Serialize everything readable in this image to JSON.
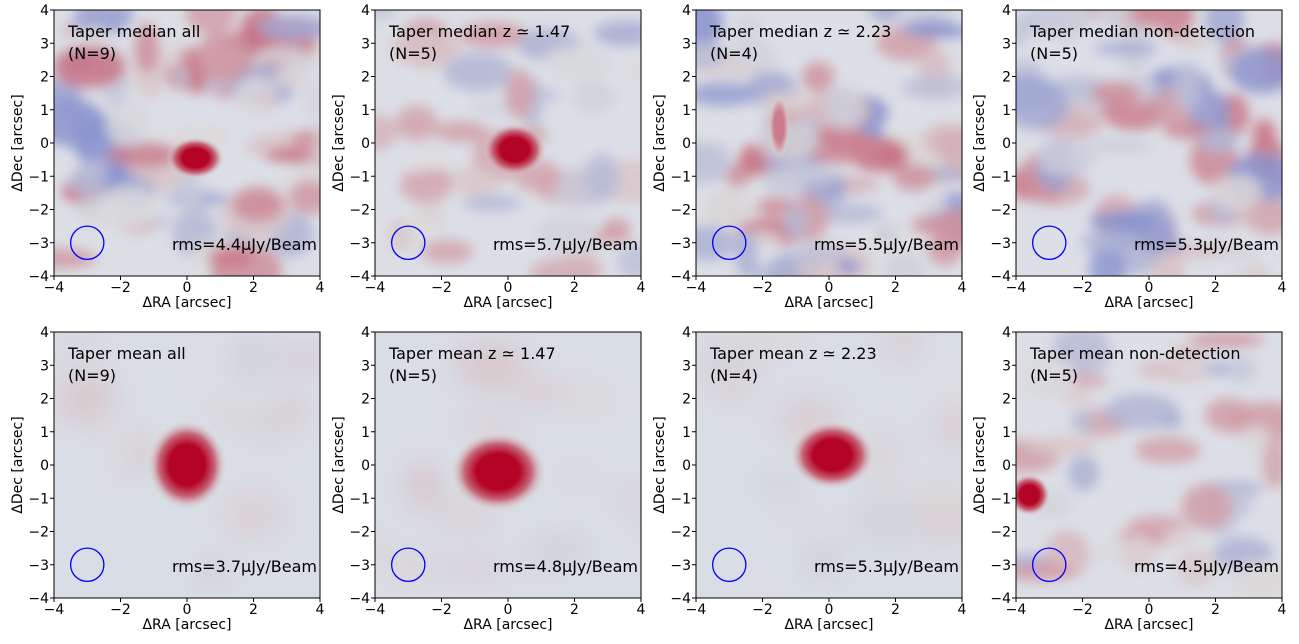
{
  "chart_data": {
    "type": "heatmap",
    "xlabel": "ΔRA [arcsec]",
    "ylabel": "ΔDec [arcsec]",
    "xlim": [
      -4,
      4
    ],
    "ylim": [
      -4,
      4
    ],
    "xticks": [
      -4,
      -2,
      0,
      2,
      4
    ],
    "yticks": [
      -4,
      -3,
      -2,
      -1,
      0,
      1,
      2,
      3,
      4
    ],
    "tick_labels_x": [
      "−4",
      "−2",
      "0",
      "2",
      "4"
    ],
    "tick_labels_y": [
      "−4",
      "−3",
      "−2",
      "−1",
      "0",
      "1",
      "2",
      "3",
      "4"
    ],
    "colors": {
      "high": "#b40426",
      "low": "#3b4cc0",
      "neutral": "#dddddd",
      "beam": "#0000ff"
    },
    "beam": {
      "ra": -3,
      "dec": -3,
      "radius_arcsec": 0.5
    },
    "panels": [
      {
        "label": "Taper median all",
        "count": "(N=9)",
        "rms": "rms=4.4μJy/Beam",
        "sources": [
          {
            "ra": 0.25,
            "dec": -0.45,
            "a": 0.55,
            "b": 0.4,
            "peak": 1.0
          }
        ],
        "noise": "high"
      },
      {
        "label": "Taper median z ≃ 1.47",
        "count": "(N=5)",
        "rms": "rms=5.7μJy/Beam",
        "sources": [
          {
            "ra": 0.2,
            "dec": -0.2,
            "a": 0.6,
            "b": 0.5,
            "peak": 1.0
          }
        ],
        "noise": "medium"
      },
      {
        "label": "Taper median z ≃ 2.23",
        "count": "(N=4)",
        "rms": "rms=5.5μJy/Beam",
        "sources": [
          {
            "ra": -1.5,
            "dec": 0.5,
            "a": 0.2,
            "b": 0.6,
            "peak": 0.45
          }
        ],
        "noise": "high"
      },
      {
        "label": "Taper median non-detection",
        "count": "(N=5)",
        "rms": "rms=5.3μJy/Beam",
        "sources": [],
        "noise": "high"
      },
      {
        "label": "Taper mean all",
        "count": "(N=9)",
        "rms": "rms=3.7μJy/Beam",
        "sources": [
          {
            "ra": 0.0,
            "dec": 0.0,
            "a": 0.75,
            "b": 0.85,
            "peak": 1.0
          }
        ],
        "noise": "low"
      },
      {
        "label": "Taper mean z ≃ 1.47",
        "count": "(N=5)",
        "rms": "rms=4.8μJy/Beam",
        "sources": [
          {
            "ra": -0.3,
            "dec": -0.2,
            "a": 0.9,
            "b": 0.75,
            "peak": 1.0
          }
        ],
        "noise": "low"
      },
      {
        "label": "Taper mean z ≃ 2.23",
        "count": "(N=4)",
        "rms": "rms=5.3μJy/Beam",
        "sources": [
          {
            "ra": 0.1,
            "dec": 0.3,
            "a": 0.8,
            "b": 0.65,
            "peak": 1.0
          }
        ],
        "noise": "low"
      },
      {
        "label": "Taper mean non-detection",
        "count": "(N=5)",
        "rms": "rms=4.5μJy/Beam",
        "sources": [
          {
            "ra": -3.6,
            "dec": -0.9,
            "a": 0.4,
            "b": 0.4,
            "peak": 1.0
          }
        ],
        "noise": "medium"
      }
    ]
  }
}
